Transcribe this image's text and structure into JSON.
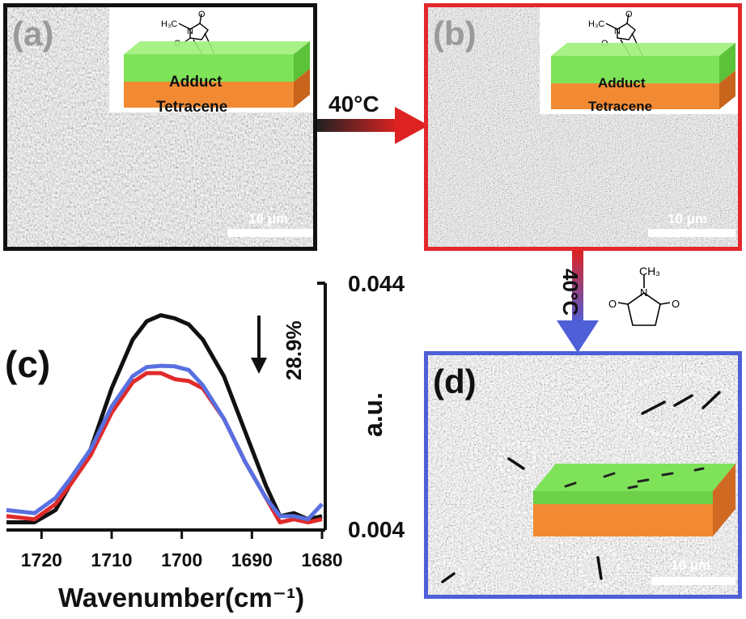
{
  "panels": {
    "a": {
      "label": "(a)",
      "scale": "10 μm"
    },
    "b": {
      "label": "(b)",
      "scale": "10 μm"
    },
    "c": {
      "label": "(c)"
    },
    "d": {
      "label": "(d)",
      "scale": "10 μm"
    }
  },
  "layers": {
    "top": "Adduct",
    "bottom": "Tetracene"
  },
  "chem": {
    "h3c": "H₃C",
    "n": "N",
    "o": "O",
    "ch3": "CH₃"
  },
  "arrows": {
    "step1": "40°C",
    "step2": "40°C"
  },
  "colors": {
    "frame_a": "#111111",
    "frame_b": "#e3272b",
    "frame_d": "#4f5fd8",
    "adduct": "#7fe35a",
    "tetracene": "#f28a33"
  },
  "chart_data": {
    "type": "line",
    "xlabel": "Wavenumber(cm⁻¹)",
    "ylabel": "a.u.",
    "xlim": [
      1725,
      1680
    ],
    "ylim": [
      0.004,
      0.044
    ],
    "x_ticks": [
      "1720",
      "1710",
      "1700",
      "1690",
      "1680"
    ],
    "y_ticks": [
      "0.044",
      "0.004"
    ],
    "annotation": "28.9%",
    "x": [
      1725,
      1721,
      1718,
      1716,
      1713,
      1710,
      1707,
      1705,
      1703,
      1701,
      1699,
      1697,
      1694,
      1691,
      1688,
      1686,
      1684,
      1682,
      1680
    ],
    "series": [
      {
        "color": "#111111",
        "values": [
          0.005,
          0.005,
          0.007,
          0.011,
          0.017,
          0.027,
          0.035,
          0.038,
          0.039,
          0.0385,
          0.0375,
          0.035,
          0.029,
          0.02,
          0.011,
          0.006,
          0.0065,
          0.0055,
          0.006
        ]
      },
      {
        "color": "#e02a2a",
        "values": [
          0.006,
          0.0055,
          0.008,
          0.011,
          0.016,
          0.023,
          0.028,
          0.0295,
          0.0295,
          0.0285,
          0.0282,
          0.027,
          0.022,
          0.015,
          0.009,
          0.005,
          0.0055,
          0.005,
          0.0055
        ]
      },
      {
        "color": "#5870e0",
        "values": [
          0.007,
          0.0065,
          0.009,
          0.012,
          0.017,
          0.024,
          0.029,
          0.0305,
          0.0307,
          0.0306,
          0.03,
          0.0275,
          0.022,
          0.015,
          0.009,
          0.006,
          0.006,
          0.0055,
          0.008
        ]
      }
    ]
  }
}
